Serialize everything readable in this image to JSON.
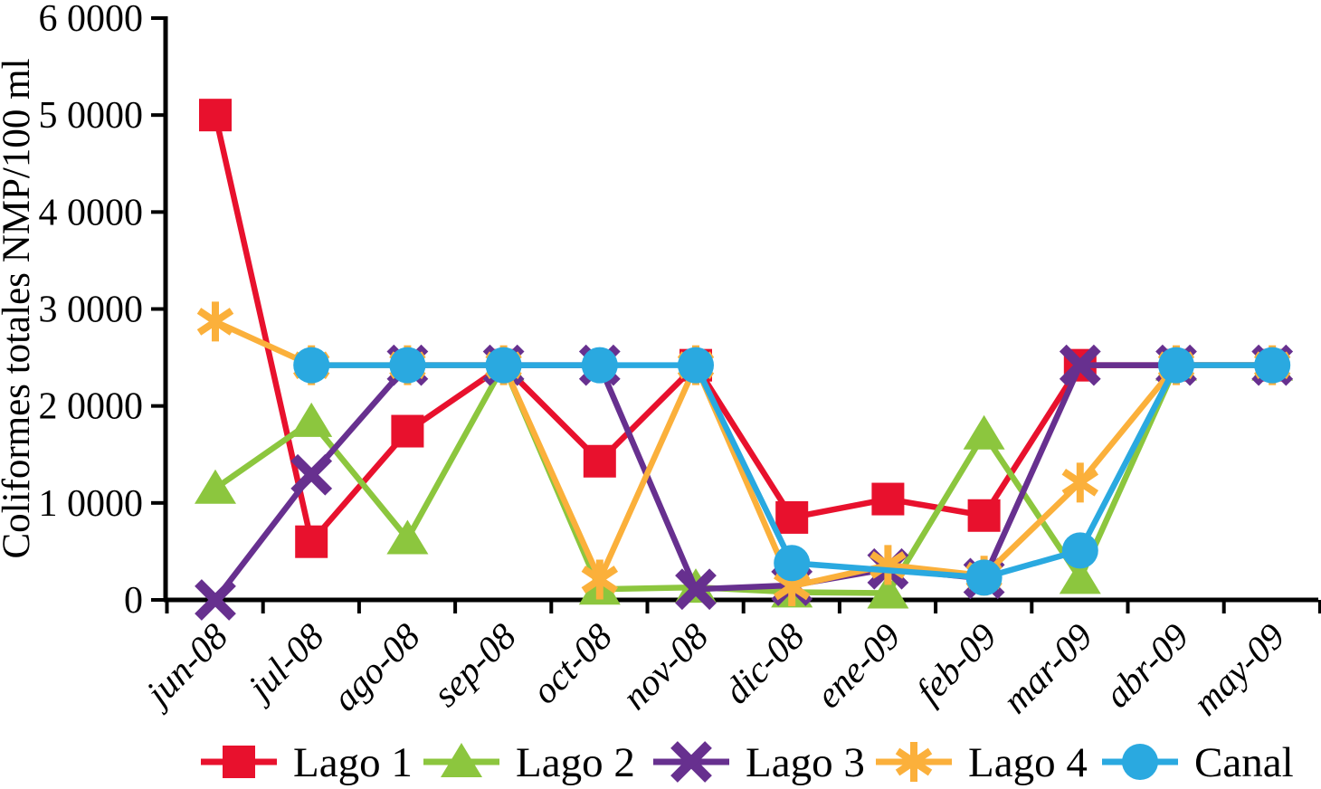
{
  "chart_data": {
    "type": "line",
    "title": "",
    "xlabel": "",
    "ylabel": "Coliformes totales NMP/100 ml",
    "ylim": [
      0,
      60000
    ],
    "ytick_interval": 10000,
    "ytick_labels": [
      "0",
      "1 0000",
      "2 0000",
      "3 0000",
      "4 0000",
      "5 0000",
      "6 0000"
    ],
    "categories": [
      "jun-08",
      "jul-08",
      "ago-08",
      "sep-08",
      "oct-08",
      "nov-08",
      "dic-08",
      "ene-09",
      "feb-09",
      "mar-09",
      "abr-09",
      "may-09"
    ],
    "grid": false,
    "legend_position": "bottom",
    "series": [
      {
        "name": "Lago 1",
        "marker": "square",
        "color": "#e8112d",
        "values": [
          50000,
          6000,
          17400,
          24200,
          14300,
          24200,
          8500,
          10400,
          8700,
          24200,
          24200,
          24200
        ]
      },
      {
        "name": "Lago 2",
        "marker": "triangle",
        "color": "#8cc63e",
        "values": [
          11500,
          18400,
          6300,
          24200,
          1100,
          1300,
          800,
          700,
          17100,
          2200,
          24200,
          24200
        ]
      },
      {
        "name": "Lago 3",
        "marker": "x",
        "color": "#67308f",
        "values": [
          0,
          12900,
          24200,
          24200,
          24200,
          1100,
          1500,
          3200,
          2200,
          24200,
          24200,
          24200
        ]
      },
      {
        "name": "Lago 4",
        "marker": "asterisk",
        "color": "#fbb03b",
        "values": [
          28700,
          24200,
          24200,
          24200,
          2100,
          24200,
          1400,
          3600,
          2500,
          12100,
          24200,
          24200
        ]
      },
      {
        "name": "Canal",
        "marker": "circle",
        "color": "#2aa9e0",
        "values": [
          null,
          24200,
          24200,
          24200,
          24200,
          24200,
          3800,
          null,
          2300,
          5100,
          24200,
          24200
        ]
      }
    ]
  }
}
